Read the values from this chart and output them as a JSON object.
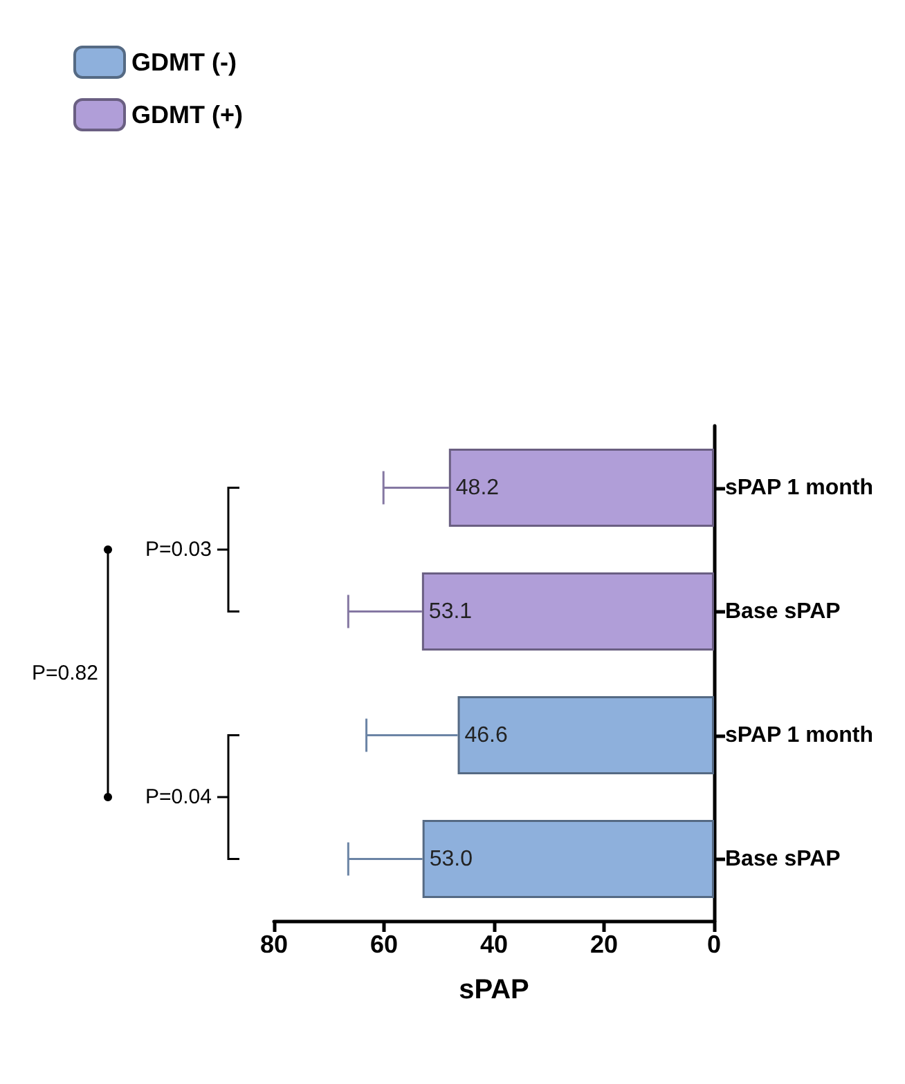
{
  "chart_data": {
    "type": "bar",
    "orientation": "horizontal",
    "xlabel": "sPAP",
    "categories": [
      "sPAP 1 month",
      "Base sPAP",
      "sPAP 1 month",
      "Base sPAP"
    ],
    "series": [
      {
        "name": "GDMT (-)",
        "color": "#8eb0dc",
        "values": [
          null,
          null,
          46.6,
          53.0
        ],
        "errors": [
          null,
          null,
          16.6,
          13.5
        ],
        "value_labels": [
          null,
          null,
          "46.6",
          "53.0"
        ]
      },
      {
        "name": "GDMT (+)",
        "color": "#b09ed8",
        "values": [
          48.2,
          53.1,
          null,
          null
        ],
        "errors": [
          11.9,
          13.4,
          null,
          null
        ],
        "value_labels": [
          "48.2",
          "53.1",
          null,
          null
        ]
      }
    ],
    "xlim": [
      80,
      0
    ],
    "xticks": [
      80,
      60,
      40,
      20,
      0
    ],
    "grid": false,
    "legend": "top left",
    "annotations": [
      "P=0.04",
      "P=0.03",
      "P=0.82"
    ]
  }
}
